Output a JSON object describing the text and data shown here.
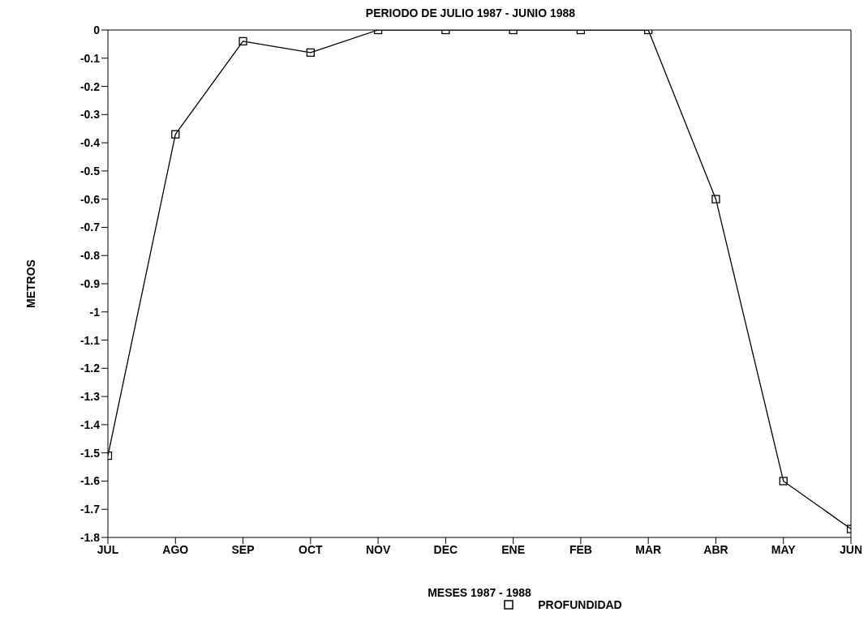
{
  "chart_data": {
    "type": "line",
    "title": "PERIODO DE JULIO 1987 - JUNIO 1988",
    "xlabel": "MESES 1987 - 1988",
    "ylabel": "METROS",
    "categories": [
      "JUL",
      "AGO",
      "SEP",
      "OCT",
      "NOV",
      "DEC",
      "ENE",
      "FEB",
      "MAR",
      "ABR",
      "MAY",
      "JUN"
    ],
    "series": [
      {
        "name": "PROFUNDIDAD",
        "color": "#000000",
        "values": [
          -1.51,
          -0.37,
          -0.04,
          -0.08,
          0,
          0,
          0,
          0,
          0,
          -0.6,
          -1.6,
          -1.77
        ]
      }
    ],
    "ylim": [
      -1.8,
      0
    ],
    "yticks": [
      0,
      -0.1,
      -0.2,
      -0.3,
      -0.4,
      -0.5,
      -0.6,
      -0.7,
      -0.8,
      -0.9,
      -1,
      -1.1,
      -1.2,
      -1.3,
      -1.4,
      -1.5,
      -1.6,
      -1.7,
      -1.8
    ],
    "marker": "square",
    "line_style": "solid",
    "grid": false,
    "legend": "bottom"
  }
}
